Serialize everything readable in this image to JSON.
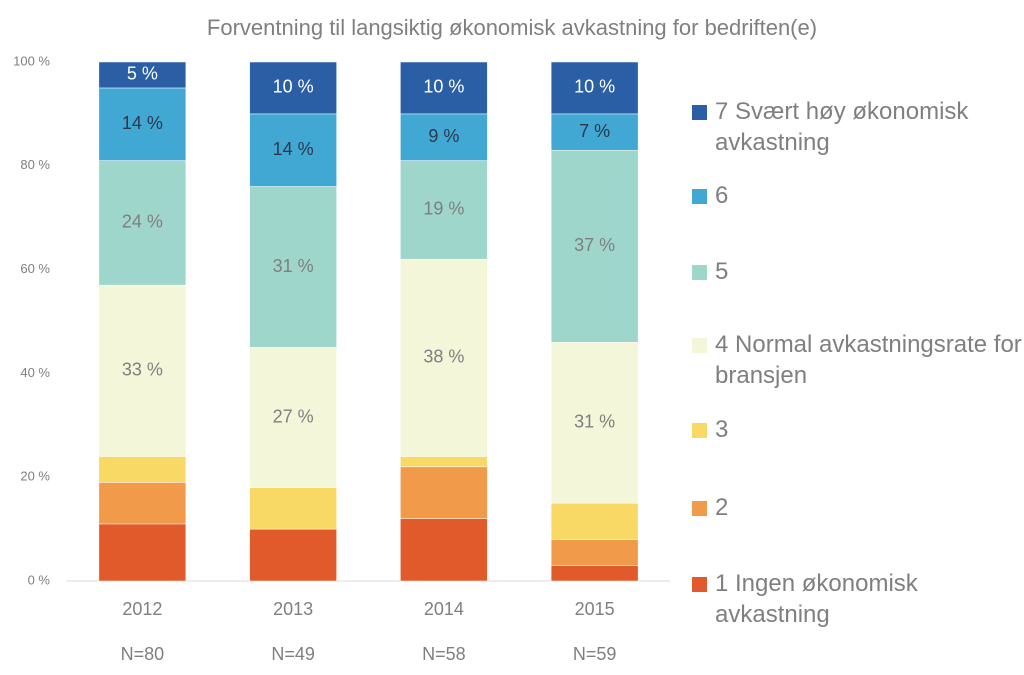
{
  "chart_data": {
    "type": "stacked-bar",
    "title": "Forventning til langsiktig økonomisk avkastning  for bedriften(e)",
    "categories": [
      "2012",
      "2013",
      "2014",
      "2015"
    ],
    "sample_sizes": [
      "N=80",
      "N=49",
      "N=58",
      "N=59"
    ],
    "ylim": [
      0,
      100
    ],
    "yticks": [
      {
        "value": 0,
        "label": "0 %"
      },
      {
        "value": 20,
        "label": "20 %"
      },
      {
        "value": 40,
        "label": "40 %"
      },
      {
        "value": 60,
        "label": "60 %"
      },
      {
        "value": 80,
        "label": "80 %"
      },
      {
        "value": 100,
        "label": "100 %"
      }
    ],
    "grid": false,
    "legend": "right",
    "series": [
      {
        "name": "1 Ingen økonomisk avkastning",
        "color": "#e05a2b",
        "label_color": "#7f7f7f",
        "values": [
          11,
          10,
          12,
          3
        ],
        "value_labels": [
          null,
          null,
          null,
          null
        ]
      },
      {
        "name": "2",
        "color": "#f09a4a",
        "label_color": "#7f7f7f",
        "values": [
          8,
          0,
          10,
          5
        ],
        "value_labels": [
          null,
          null,
          null,
          null
        ]
      },
      {
        "name": "3",
        "color": "#f9d966",
        "label_color": "#7f7f7f",
        "values": [
          5,
          8,
          2,
          7
        ],
        "value_labels": [
          null,
          null,
          null,
          null
        ]
      },
      {
        "name": "4 Normal avkastningsrate for bransjen",
        "color": "#f3f6d9",
        "label_color": "#7f7f7f",
        "values": [
          33,
          27,
          38,
          31
        ],
        "value_labels": [
          "33 %",
          "27 %",
          "38 %",
          "31 %"
        ]
      },
      {
        "name": "5",
        "color": "#9fd6cb",
        "label_color": "#7f7f7f",
        "values": [
          24,
          31,
          19,
          37
        ],
        "value_labels": [
          "24 %",
          "31 %",
          "19 %",
          "37 %"
        ]
      },
      {
        "name": "6",
        "color": "#41a7d3",
        "label_color": "#2b3a4a",
        "values": [
          14,
          14,
          9,
          7
        ],
        "value_labels": [
          "14 %",
          "14 %",
          "9 %",
          "7 %"
        ]
      },
      {
        "name": "7 Svært høy økonomisk avkastning",
        "color": "#2a5fa5",
        "label_color": "#ffffff",
        "values": [
          5,
          10,
          10,
          10
        ],
        "value_labels": [
          "5 %",
          "10 %",
          "10 %",
          "10 %"
        ]
      }
    ]
  }
}
